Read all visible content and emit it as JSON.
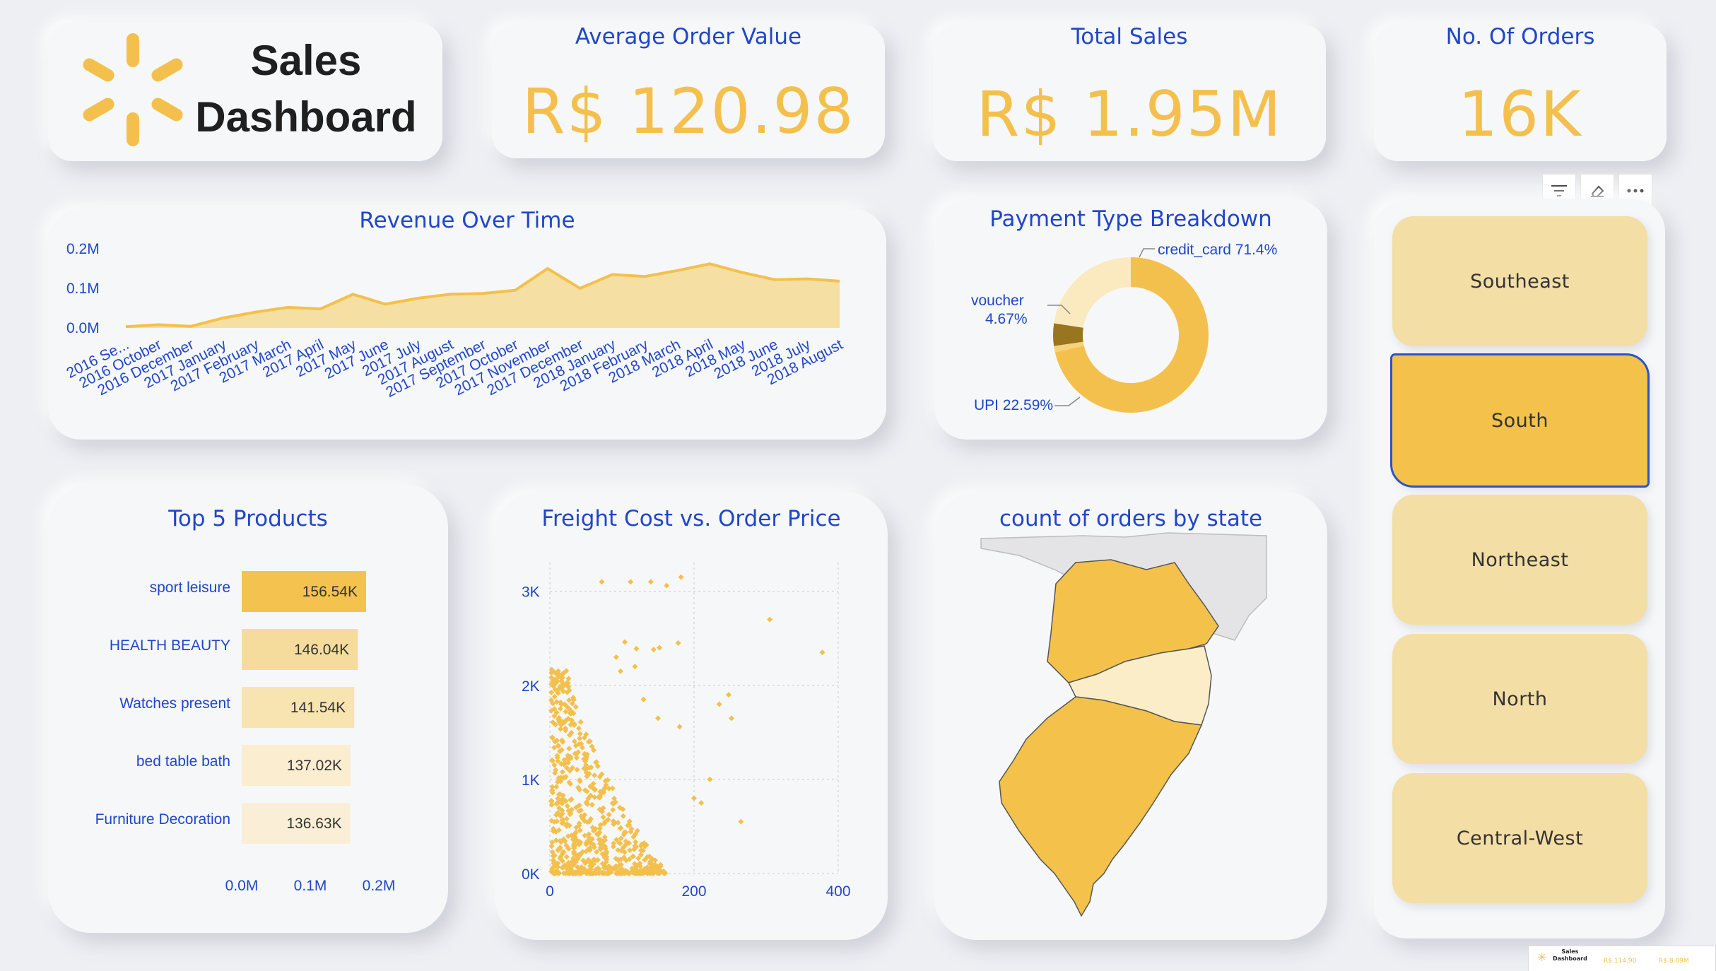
{
  "header": {
    "title_line1": "Sales",
    "title_line2": "Dashboard",
    "logo_icon": "spark-logo-icon"
  },
  "kpis": [
    {
      "label": "Average Order Value",
      "value": "R$ 120.98"
    },
    {
      "label": "Total Sales",
      "value": "R$ 1.95M"
    },
    {
      "label": "No. Of Orders",
      "value": "16K"
    }
  ],
  "colors": {
    "accent": "#f4c04d",
    "title": "#2046c9",
    "fill": "#f6dc9c"
  },
  "revenue": {
    "title": "Revenue Over Time",
    "yticks": [
      "0.2M",
      "0.1M",
      "0.0M"
    ],
    "chart_data": {
      "type": "area",
      "categories": [
        "2016 Se...",
        "2016 October",
        "2016 December",
        "2017 January",
        "2017 February",
        "2017 March",
        "2017 April",
        "2017 May",
        "2017 June",
        "2017 July",
        "2017 August",
        "2017 September",
        "2017 October",
        "2017 November",
        "2017 December",
        "2018 January",
        "2018 February",
        "2018 March",
        "2018 April",
        "2018 May",
        "2018 June",
        "2018 July",
        "2018 August"
      ],
      "values": [
        0.003,
        0.008,
        0.004,
        0.025,
        0.04,
        0.052,
        0.048,
        0.085,
        0.06,
        0.075,
        0.085,
        0.087,
        0.095,
        0.15,
        0.1,
        0.135,
        0.13,
        0.145,
        0.162,
        0.14,
        0.122,
        0.124,
        0.118
      ],
      "ylim": [
        0,
        0.2
      ]
    }
  },
  "payment": {
    "title": "Payment Type Breakdown",
    "labels": {
      "credit_card": "credit_card 71.4%",
      "voucher_1": "voucher",
      "voucher_2": "4.67%",
      "upi": "UPI 22.59%"
    },
    "chart_data": {
      "type": "pie",
      "slices": [
        {
          "name": "credit_card",
          "value": 71.4,
          "color": "#f4c04d"
        },
        {
          "name": "UPI",
          "value": 22.59,
          "color": "#fbe9c0"
        },
        {
          "name": "voucher",
          "value": 4.67,
          "color": "#9a7520"
        },
        {
          "name": "other",
          "value": 1.34,
          "color": "#f6d27a"
        }
      ]
    }
  },
  "top_products": {
    "title": "Top 5 Products",
    "xticks": [
      "0.0M",
      "0.1M",
      "0.2M"
    ],
    "chart_data": {
      "type": "bar",
      "categories": [
        "sport leisure",
        "HEALTH BEAUTY",
        "Watches present",
        "bed table bath",
        "Furniture Decoration"
      ],
      "labels": [
        "156.54K",
        "146.04K",
        "141.54K",
        "137.02K",
        "136.63K"
      ],
      "values": [
        156540,
        146040,
        141540,
        137020,
        136630
      ],
      "colors": [
        "#f4c24e",
        "#f6dc9c",
        "#f8e4b0",
        "#faedd0",
        "#faefd6"
      ],
      "xlim": [
        0,
        200000
      ]
    }
  },
  "freight": {
    "title": "Freight Cost vs. Order Price",
    "yticks": [
      "3K",
      "2K",
      "1K",
      "0K"
    ],
    "xticks": [
      "0",
      "200",
      "400"
    ],
    "chart_data": {
      "type": "scatter",
      "xlim": [
        0,
        400
      ],
      "ylim": [
        0,
        3000
      ],
      "outliers": [
        [
          72,
          3100
        ],
        [
          112,
          3100
        ],
        [
          140,
          3100
        ],
        [
          162,
          3060
        ],
        [
          182,
          3150
        ],
        [
          305,
          2700
        ],
        [
          378,
          2350
        ],
        [
          178,
          2450
        ],
        [
          120,
          2390
        ],
        [
          144,
          2380
        ],
        [
          152,
          2400
        ],
        [
          118,
          2200
        ],
        [
          104,
          2460
        ],
        [
          92,
          2300
        ],
        [
          98,
          2150
        ],
        [
          130,
          1850
        ],
        [
          150,
          1650
        ],
        [
          180,
          1560
        ],
        [
          252,
          1650
        ],
        [
          235,
          1800
        ],
        [
          248,
          1900
        ],
        [
          222,
          1000
        ],
        [
          265,
          550
        ],
        [
          210,
          750
        ],
        [
          200,
          800
        ]
      ]
    }
  },
  "map": {
    "title": "count of orders by state"
  },
  "slicer": {
    "items": [
      "Southeast",
      "South",
      "Northeast",
      "North",
      "Central-West"
    ],
    "selected": "South",
    "tool_icons": [
      "filter-icon",
      "eraser-icon",
      "more-icon"
    ]
  },
  "thumbnail": {
    "title_1": "Sales",
    "title_2": "Dashboard",
    "kpi_1": "R$ 114.90",
    "kpi_2": "R$ 8.89M"
  }
}
